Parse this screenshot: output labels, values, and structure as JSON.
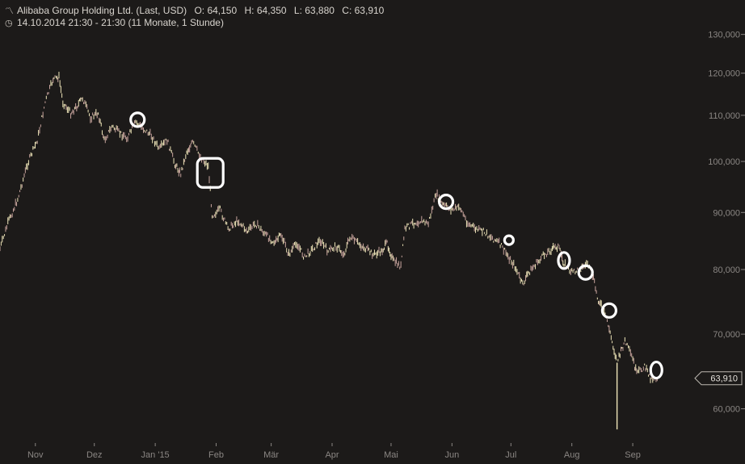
{
  "header": {
    "instrument": "Alibaba Group Holding Ltd. (Last, USD)",
    "open": "O: 64,150",
    "high": "H: 64,350",
    "low": "L: 63,880",
    "close": "C: 63,910",
    "timespan": "14.10.2014 21:30 - 21:30 (11 Monate, 1 Stunde)",
    "chart_icon": "line-chart-icon",
    "time_icon": "clock-icon"
  },
  "colors": {
    "background": "#1c1a19",
    "up_bar": "#efe6b9",
    "down_bar": "#c9a59e",
    "marker": "#ffffff",
    "axis_text": "#8a8683"
  },
  "chart_data": {
    "type": "line",
    "y_scale": "log",
    "ylim": [
      56000,
      135000
    ],
    "y_ticks": [
      {
        "value": 130000,
        "label": "130,000"
      },
      {
        "value": 120000,
        "label": "120,000"
      },
      {
        "value": 110000,
        "label": "110,000"
      },
      {
        "value": 100000,
        "label": "100,000"
      },
      {
        "value": 90000,
        "label": "90,000"
      },
      {
        "value": 80000,
        "label": "80,000"
      },
      {
        "value": 70000,
        "label": "70,000"
      },
      {
        "value": 60000,
        "label": "60,000"
      }
    ],
    "x_range": [
      "2014-10-14",
      "2015-09-17"
    ],
    "x_ticks": [
      {
        "date": "2014-11-01",
        "label": "Nov"
      },
      {
        "date": "2014-12-01",
        "label": "Dez"
      },
      {
        "date": "2015-01-01",
        "label": "Jan '15"
      },
      {
        "date": "2015-02-01",
        "label": "Feb"
      },
      {
        "date": "2015-03-01",
        "label": "Mär"
      },
      {
        "date": "2015-04-01",
        "label": "Apr"
      },
      {
        "date": "2015-05-01",
        "label": "Mai"
      },
      {
        "date": "2015-06-01",
        "label": "Jun"
      },
      {
        "date": "2015-07-01",
        "label": "Jul"
      },
      {
        "date": "2015-08-01",
        "label": "Aug"
      },
      {
        "date": "2015-09-01",
        "label": "Sep"
      }
    ],
    "series": [
      {
        "points": [
          [
            "2014-10-14",
            83500
          ],
          [
            "2014-10-18",
            88000
          ],
          [
            "2014-10-23",
            92500
          ],
          [
            "2014-10-28",
            99500
          ],
          [
            "2014-11-02",
            104500
          ],
          [
            "2014-11-06",
            113000
          ],
          [
            "2014-11-10",
            118500
          ],
          [
            "2014-11-13",
            119000
          ],
          [
            "2014-11-15",
            113000
          ],
          [
            "2014-11-19",
            110500
          ],
          [
            "2014-11-22",
            112000
          ],
          [
            "2014-11-25",
            114000
          ],
          [
            "2014-11-29",
            109500
          ],
          [
            "2014-12-03",
            110500
          ],
          [
            "2014-12-06",
            104500
          ],
          [
            "2014-12-10",
            107500
          ],
          [
            "2014-12-14",
            106000
          ],
          [
            "2014-12-18",
            105000
          ],
          [
            "2014-12-22",
            108500
          ],
          [
            "2014-12-26",
            107000
          ],
          [
            "2014-12-30",
            105500
          ],
          [
            "2015-01-03",
            102500
          ],
          [
            "2015-01-07",
            104500
          ],
          [
            "2015-01-11",
            99500
          ],
          [
            "2015-01-14",
            97500
          ],
          [
            "2015-01-17",
            102000
          ],
          [
            "2015-01-20",
            104000
          ],
          [
            "2015-01-24",
            101000
          ],
          [
            "2015-01-28",
            99000
          ],
          [
            "2015-01-30",
            89500
          ],
          [
            "2015-02-03",
            90500
          ],
          [
            "2015-02-07",
            87000
          ],
          [
            "2015-02-12",
            88500
          ],
          [
            "2015-02-17",
            86500
          ],
          [
            "2015-02-21",
            88000
          ],
          [
            "2015-02-26",
            86000
          ],
          [
            "2015-03-03",
            84500
          ],
          [
            "2015-03-06",
            86000
          ],
          [
            "2015-03-10",
            82500
          ],
          [
            "2015-03-14",
            84500
          ],
          [
            "2015-03-18",
            82000
          ],
          [
            "2015-03-22",
            83500
          ],
          [
            "2015-03-26",
            85000
          ],
          [
            "2015-03-30",
            83000
          ],
          [
            "2015-04-03",
            84000
          ],
          [
            "2015-04-07",
            82500
          ],
          [
            "2015-04-10",
            85500
          ],
          [
            "2015-04-14",
            84500
          ],
          [
            "2015-04-18",
            83500
          ],
          [
            "2015-04-22",
            82500
          ],
          [
            "2015-04-26",
            83000
          ],
          [
            "2015-04-29",
            84500
          ],
          [
            "2015-05-02",
            81500
          ],
          [
            "2015-05-06",
            80500
          ],
          [
            "2015-05-08",
            87000
          ],
          [
            "2015-05-12",
            88000
          ],
          [
            "2015-05-16",
            88500
          ],
          [
            "2015-05-20",
            88000
          ],
          [
            "2015-05-24",
            93500
          ],
          [
            "2015-05-27",
            91500
          ],
          [
            "2015-06-01",
            90500
          ],
          [
            "2015-06-05",
            91000
          ],
          [
            "2015-06-09",
            88000
          ],
          [
            "2015-06-13",
            87000
          ],
          [
            "2015-06-17",
            86500
          ],
          [
            "2015-06-21",
            85500
          ],
          [
            "2015-06-25",
            84500
          ],
          [
            "2015-06-29",
            82500
          ],
          [
            "2015-07-03",
            80500
          ],
          [
            "2015-07-07",
            77500
          ],
          [
            "2015-07-10",
            79500
          ],
          [
            "2015-07-14",
            81000
          ],
          [
            "2015-07-18",
            82500
          ],
          [
            "2015-07-22",
            83500
          ],
          [
            "2015-07-25",
            84000
          ],
          [
            "2015-07-28",
            81000
          ],
          [
            "2015-08-01",
            79500
          ],
          [
            "2015-08-05",
            80000
          ],
          [
            "2015-08-09",
            81000
          ],
          [
            "2015-08-12",
            78500
          ],
          [
            "2015-08-14",
            75500
          ],
          [
            "2015-08-17",
            73500
          ],
          [
            "2015-08-19",
            72000
          ],
          [
            "2015-08-21",
            69500
          ],
          [
            "2015-08-24",
            66000
          ],
          [
            "2015-08-26",
            67500
          ],
          [
            "2015-08-28",
            69000
          ],
          [
            "2015-09-01",
            66500
          ],
          [
            "2015-09-03",
            64500
          ],
          [
            "2015-09-07",
            65500
          ],
          [
            "2015-09-10",
            64000
          ],
          [
            "2015-09-14",
            63910
          ]
        ],
        "spikes": [
          {
            "date": "2015-08-24",
            "low": 57500,
            "high": 66000
          }
        ]
      }
    ],
    "markers": [
      {
        "date": "2014-12-23",
        "value": 109000,
        "shape": "circle",
        "size": "small"
      },
      {
        "date": "2015-01-29",
        "value": 97500,
        "shape": "rounded-square",
        "size": "large"
      },
      {
        "date": "2015-05-29",
        "value": 92000,
        "shape": "circle",
        "size": "small"
      },
      {
        "date": "2015-06-30",
        "value": 85000,
        "shape": "circle",
        "size": "tiny"
      },
      {
        "date": "2015-07-28",
        "value": 81500,
        "shape": "oval",
        "size": "small"
      },
      {
        "date": "2015-08-08",
        "value": 79500,
        "shape": "circle",
        "size": "small"
      },
      {
        "date": "2015-08-20",
        "value": 73500,
        "shape": "circle",
        "size": "small"
      },
      {
        "date": "2015-09-13",
        "value": 65000,
        "shape": "oval",
        "size": "small"
      }
    ],
    "last_price": {
      "value": 63910,
      "label": "63,910"
    }
  }
}
